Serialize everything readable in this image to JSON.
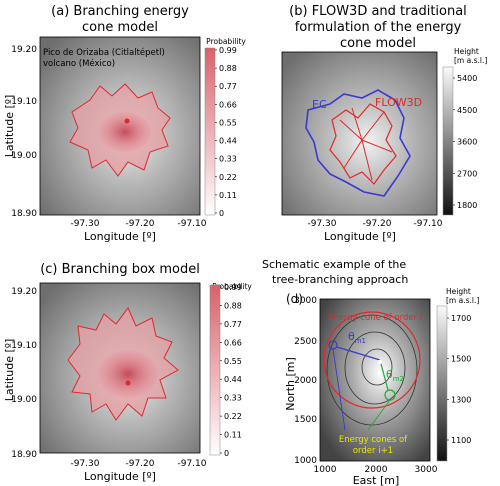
{
  "panels": {
    "a": {
      "title_line1": "(a) Branching energy",
      "title_line2": "cone model",
      "annotation_line1": "Pico de Orizaba (Citlaltépetl)",
      "annotation_line2": "volcano (México)",
      "xlabel": "Longitude [º]",
      "ylabel": "Latitude [º]",
      "xticks": [
        "-97.30",
        "-97.20",
        "-97.10"
      ],
      "yticks": [
        "19.20",
        "19.10",
        "19.00",
        "18.90"
      ],
      "colorbar_title": "Probability",
      "colorbar_ticks": [
        "0.99",
        "0.88",
        "0.77",
        "0.66",
        "0.55",
        "0.44",
        "0.33",
        "0.22",
        "0.11",
        "0"
      ]
    },
    "b": {
      "title_line1": "(b) FLOW3D and traditional",
      "title_line2": "formulation of the energy",
      "title_line3": "cone model",
      "legend_ec": "EC",
      "legend_flow3d": "FLOW3D",
      "xlabel": "Longitude [º]",
      "xticks": [
        "-97.30",
        "-97.20",
        "-97.10"
      ],
      "colorbar_title_line1": "Height",
      "colorbar_title_line2": "[m a.s.l.]",
      "colorbar_ticks": [
        "5400",
        "4500",
        "3600",
        "2700",
        "1800"
      ]
    },
    "c": {
      "title": "(c) Branching box model",
      "xlabel": "Longitude [º]",
      "ylabel": "Latitude [º]",
      "xticks": [
        "-97.30",
        "-97.20",
        "-97.10"
      ],
      "yticks": [
        "19.20",
        "19.10",
        "19.00",
        "18.90"
      ],
      "colorbar_title": "Probability",
      "colorbar_ticks": [
        "0.99",
        "0.88",
        "0.77",
        "0.66",
        "0.55",
        "0.44",
        "0.33",
        "0.22",
        "0.11",
        "0"
      ]
    },
    "d": {
      "heading_line1": "Schematic example of the",
      "heading_line2": "tree-branching approach",
      "label": "(d)",
      "xlabel": "East [m]",
      "ylabel": "North [m]",
      "xticks": [
        "1000",
        "2000",
        "3000"
      ],
      "yticks": [
        "3000",
        "2500",
        "2000",
        "1500",
        "1000"
      ],
      "annotation_order_i": "Energy cone of order i",
      "theta1": "θ",
      "theta1_sub": "m1",
      "theta2": "θ",
      "theta2_sub": "m2",
      "annotation_next_line1": "Energy cones of",
      "annotation_next_line2": "order i+1",
      "colorbar_title_line1": "Height",
      "colorbar_title_line2": "[m a.s.l.]",
      "colorbar_ticks": [
        "1700",
        "1500",
        "1300",
        "1100"
      ]
    }
  },
  "colors": {
    "probability_high": "#d9616b",
    "probability_low": "#ffffff",
    "flow3d_line": "#e0282a",
    "ec_line": "#3a3ad0",
    "green_arrow": "#22aa33",
    "yellow_text": "#e8e800"
  }
}
